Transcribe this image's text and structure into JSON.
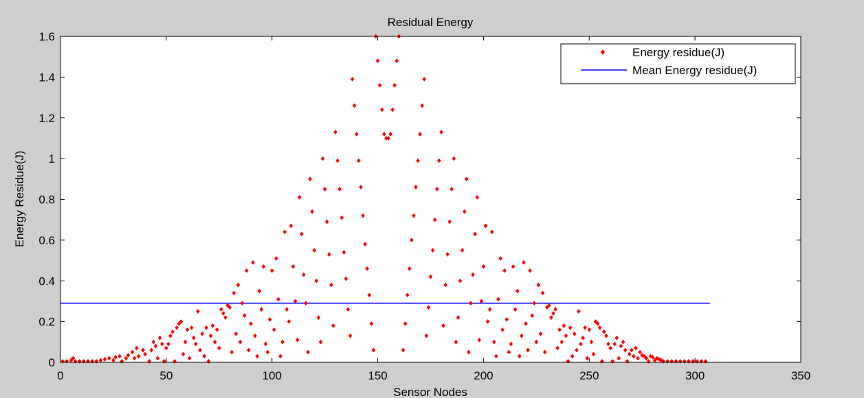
{
  "figure": {
    "background": "#cecece",
    "plot_background": "#ffffff"
  },
  "chart_data": {
    "type": "scatter",
    "title": "Residual Energy",
    "xlabel": "Sensor Nodes",
    "ylabel": "Energy Residue(J)",
    "xlim": [
      0,
      350
    ],
    "ylim": [
      0,
      1.6
    ],
    "xticks": [
      0,
      50,
      100,
      150,
      200,
      250,
      300,
      350
    ],
    "yticks": [
      0,
      0.2,
      0.4,
      0.6,
      0.8,
      1,
      1.2,
      1.4,
      1.6
    ],
    "xtick_labels": [
      "0",
      "50",
      "100",
      "150",
      "200",
      "250",
      "300",
      "350"
    ],
    "ytick_labels": [
      "0",
      "0.2",
      "0.4",
      "0.6",
      "0.8",
      "1",
      "1.2",
      "1.4",
      "1.6"
    ],
    "grid": false,
    "legend": {
      "placement": "top-right",
      "entries": [
        "Energy residue(J)",
        "Mean Energy residue(J)"
      ]
    },
    "series": [
      {
        "name": "Energy residue(J)",
        "type": "scatter",
        "marker": "diamond",
        "color": "#ff0000",
        "points": [
          [
            1,
            0.005
          ],
          [
            3,
            0.005
          ],
          [
            5,
            0.01
          ],
          [
            6,
            0.02
          ],
          [
            7,
            0.005
          ],
          [
            9,
            0.005
          ],
          [
            11,
            0.005
          ],
          [
            13,
            0.005
          ],
          [
            15,
            0.005
          ],
          [
            17,
            0.005
          ],
          [
            19,
            0.01
          ],
          [
            21,
            0.015
          ],
          [
            23,
            0.02
          ],
          [
            25,
            0.01
          ],
          [
            26,
            0.025
          ],
          [
            28,
            0.03
          ],
          [
            29,
            0.005
          ],
          [
            31,
            0.02
          ],
          [
            32,
            0.035
          ],
          [
            34,
            0.05
          ],
          [
            35,
            0.02
          ],
          [
            36,
            0.07
          ],
          [
            37,
            0.03
          ],
          [
            39,
            0.06
          ],
          [
            40,
            0.04
          ],
          [
            42,
            0.005
          ],
          [
            43,
            0.06
          ],
          [
            44,
            0.1
          ],
          [
            45,
            0.08
          ],
          [
            46,
            0.02
          ],
          [
            47,
            0.12
          ],
          [
            48,
            0.09
          ],
          [
            49,
            0.005
          ],
          [
            50,
            0.07
          ],
          [
            51,
            0.09
          ],
          [
            52,
            0.13
          ],
          [
            53,
            0.15
          ],
          [
            54,
            0.005
          ],
          [
            55,
            0.17
          ],
          [
            56,
            0.19
          ],
          [
            57,
            0.2
          ],
          [
            58,
            0.04
          ],
          [
            59,
            0.1
          ],
          [
            60,
            0.16
          ],
          [
            61,
            0.02
          ],
          [
            62,
            0.17
          ],
          [
            63,
            0.12
          ],
          [
            64,
            0.09
          ],
          [
            65,
            0.25
          ],
          [
            66,
            0.06
          ],
          [
            67,
            0.14
          ],
          [
            68,
            0.03
          ],
          [
            69,
            0.17
          ],
          [
            70,
            0.005
          ],
          [
            71,
            0.13
          ],
          [
            72,
            0.18
          ],
          [
            73,
            0.1
          ],
          [
            74,
            0.16
          ],
          [
            75,
            0.07
          ],
          [
            76,
            0.26
          ],
          [
            77,
            0.24
          ],
          [
            78,
            0.22
          ],
          [
            79,
            0.28
          ],
          [
            80,
            0.27
          ],
          [
            81,
            0.05
          ],
          [
            82,
            0.34
          ],
          [
            83,
            0.14
          ],
          [
            84,
            0.38
          ],
          [
            85,
            0.1
          ],
          [
            86,
            0.29
          ],
          [
            87,
            0.23
          ],
          [
            88,
            0.45
          ],
          [
            89,
            0.06
          ],
          [
            90,
            0.19
          ],
          [
            91,
            0.49
          ],
          [
            92,
            0.13
          ],
          [
            93,
            0.03
          ],
          [
            94,
            0.35
          ],
          [
            95,
            0.26
          ],
          [
            96,
            0.47
          ],
          [
            97,
            0.09
          ],
          [
            98,
            0.05
          ],
          [
            99,
            0.21
          ],
          [
            100,
            0.45
          ],
          [
            101,
            0.16
          ],
          [
            102,
            0.51
          ],
          [
            103,
            0.31
          ],
          [
            104,
            0.03
          ],
          [
            105,
            0.1
          ],
          [
            106,
            0.64
          ],
          [
            107,
            0.26
          ],
          [
            108,
            0.2
          ],
          [
            109,
            0.67
          ],
          [
            110,
            0.47
          ],
          [
            111,
            0.3
          ],
          [
            112,
            0.11
          ],
          [
            113,
            0.81
          ],
          [
            114,
            0.63
          ],
          [
            115,
            0.43
          ],
          [
            116,
            0.29
          ],
          [
            117,
            0.05
          ],
          [
            118,
            0.9
          ],
          [
            119,
            0.74
          ],
          [
            120,
            0.55
          ],
          [
            121,
            0.4
          ],
          [
            122,
            0.22
          ],
          [
            123,
            0.1
          ],
          [
            124,
            1.0
          ],
          [
            125,
            0.85
          ],
          [
            126,
            0.69
          ],
          [
            127,
            0.53
          ],
          [
            128,
            0.38
          ],
          [
            129,
            0.18
          ],
          [
            130,
            1.13
          ],
          [
            131,
            0.99
          ],
          [
            132,
            0.85
          ],
          [
            133,
            0.71
          ],
          [
            134,
            0.54
          ],
          [
            135,
            0.41
          ],
          [
            136,
            0.26
          ],
          [
            137,
            0.13
          ],
          [
            138,
            1.39
          ],
          [
            139,
            1.26
          ],
          [
            140,
            1.12
          ],
          [
            141,
            0.99
          ],
          [
            142,
            0.86
          ],
          [
            143,
            0.72
          ],
          [
            144,
            0.58
          ],
          [
            145,
            0.46
          ],
          [
            146,
            0.33
          ],
          [
            147,
            0.19
          ],
          [
            148,
            0.06
          ],
          [
            149,
            1.6
          ],
          [
            150,
            1.48
          ],
          [
            151,
            1.36
          ],
          [
            152,
            1.24
          ],
          [
            153,
            1.12
          ],
          [
            154,
            1.1
          ],
          [
            155,
            1.1
          ],
          [
            156,
            1.12
          ],
          [
            157,
            1.24
          ],
          [
            158,
            1.36
          ],
          [
            159,
            1.48
          ],
          [
            160,
            1.6
          ],
          [
            162,
            0.06
          ],
          [
            163,
            0.19
          ],
          [
            164,
            0.33
          ],
          [
            165,
            0.46
          ],
          [
            166,
            0.6
          ],
          [
            167,
            0.72
          ],
          [
            168,
            0.86
          ],
          [
            169,
            0.99
          ],
          [
            170,
            1.12
          ],
          [
            171,
            1.26
          ],
          [
            172,
            1.39
          ],
          [
            173,
            0.13
          ],
          [
            174,
            0.27
          ],
          [
            175,
            0.42
          ],
          [
            176,
            0.55
          ],
          [
            177,
            0.7
          ],
          [
            178,
            0.85
          ],
          [
            179,
            0.99
          ],
          [
            180,
            1.13
          ],
          [
            181,
            0.18
          ],
          [
            182,
            0.38
          ],
          [
            183,
            0.53
          ],
          [
            184,
            0.69
          ],
          [
            185,
            0.85
          ],
          [
            186,
            1.0
          ],
          [
            187,
            0.1
          ],
          [
            188,
            0.22
          ],
          [
            189,
            0.4
          ],
          [
            190,
            0.55
          ],
          [
            191,
            0.74
          ],
          [
            192,
            0.9
          ],
          [
            193,
            0.05
          ],
          [
            194,
            0.29
          ],
          [
            195,
            0.43
          ],
          [
            196,
            0.63
          ],
          [
            197,
            0.81
          ],
          [
            198,
            0.11
          ],
          [
            199,
            0.3
          ],
          [
            200,
            0.47
          ],
          [
            201,
            0.67
          ],
          [
            202,
            0.2
          ],
          [
            203,
            0.26
          ],
          [
            204,
            0.64
          ],
          [
            205,
            0.1
          ],
          [
            206,
            0.03
          ],
          [
            207,
            0.31
          ],
          [
            208,
            0.51
          ],
          [
            209,
            0.16
          ],
          [
            210,
            0.45
          ],
          [
            211,
            0.21
          ],
          [
            212,
            0.05
          ],
          [
            213,
            0.09
          ],
          [
            214,
            0.47
          ],
          [
            215,
            0.26
          ],
          [
            216,
            0.35
          ],
          [
            217,
            0.03
          ],
          [
            218,
            0.13
          ],
          [
            219,
            0.49
          ],
          [
            220,
            0.19
          ],
          [
            221,
            0.06
          ],
          [
            222,
            0.45
          ],
          [
            223,
            0.23
          ],
          [
            224,
            0.29
          ],
          [
            225,
            0.1
          ],
          [
            226,
            0.38
          ],
          [
            227,
            0.14
          ],
          [
            228,
            0.34
          ],
          [
            229,
            0.05
          ],
          [
            230,
            0.27
          ],
          [
            231,
            0.28
          ],
          [
            232,
            0.22
          ],
          [
            233,
            0.24
          ],
          [
            234,
            0.26
          ],
          [
            235,
            0.07
          ],
          [
            236,
            0.16
          ],
          [
            237,
            0.1
          ],
          [
            238,
            0.18
          ],
          [
            239,
            0.13
          ],
          [
            240,
            0.005
          ],
          [
            241,
            0.17
          ],
          [
            242,
            0.03
          ],
          [
            243,
            0.14
          ],
          [
            244,
            0.06
          ],
          [
            245,
            0.25
          ],
          [
            246,
            0.09
          ],
          [
            247,
            0.12
          ],
          [
            248,
            0.17
          ],
          [
            249,
            0.02
          ],
          [
            250,
            0.16
          ],
          [
            251,
            0.1
          ],
          [
            252,
            0.04
          ],
          [
            253,
            0.2
          ],
          [
            254,
            0.19
          ],
          [
            255,
            0.17
          ],
          [
            256,
            0.005
          ],
          [
            257,
            0.15
          ],
          [
            258,
            0.13
          ],
          [
            259,
            0.09
          ],
          [
            260,
            0.07
          ],
          [
            261,
            0.005
          ],
          [
            262,
            0.09
          ],
          [
            263,
            0.12
          ],
          [
            264,
            0.02
          ],
          [
            265,
            0.08
          ],
          [
            266,
            0.1
          ],
          [
            267,
            0.06
          ],
          [
            268,
            0.005
          ],
          [
            269,
            0.04
          ],
          [
            270,
            0.06
          ],
          [
            271,
            0.03
          ],
          [
            272,
            0.07
          ],
          [
            273,
            0.02
          ],
          [
            274,
            0.05
          ],
          [
            275,
            0.035
          ],
          [
            276,
            0.03
          ],
          [
            277,
            0.02
          ],
          [
            278,
            0.005
          ],
          [
            279,
            0.03
          ],
          [
            280,
            0.025
          ],
          [
            281,
            0.01
          ],
          [
            282,
            0.02
          ],
          [
            283,
            0.015
          ],
          [
            284,
            0.01
          ],
          [
            285,
            0.005
          ],
          [
            287,
            0.005
          ],
          [
            289,
            0.005
          ],
          [
            291,
            0.005
          ],
          [
            293,
            0.005
          ],
          [
            295,
            0.005
          ],
          [
            297,
            0.005
          ],
          [
            299,
            0.005
          ],
          [
            301,
            0.005
          ],
          [
            303,
            0.005
          ],
          [
            305,
            0.005
          ]
        ]
      },
      {
        "name": "Mean Energy residue(J)",
        "type": "line",
        "color": "#0000ff",
        "x": [
          0,
          307
        ],
        "y": [
          0.29,
          0.29
        ]
      }
    ]
  }
}
